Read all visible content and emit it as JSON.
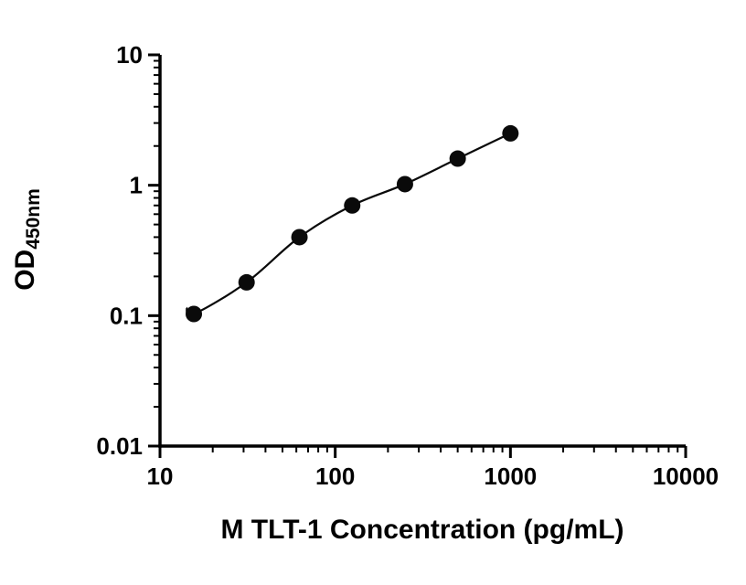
{
  "chart_data": {
    "type": "scatter",
    "x": [
      15.6,
      31.2,
      62.5,
      125,
      250,
      500,
      1000
    ],
    "y": [
      0.103,
      0.18,
      0.4,
      0.7,
      1.02,
      1.6,
      2.5
    ],
    "xlabel": "M TLT-1 Concentration (pg/mL)",
    "ylabel_main": "OD",
    "ylabel_sub": "450nm",
    "x_scale": "log",
    "y_scale": "log",
    "xlim": [
      10,
      10000
    ],
    "ylim": [
      0.01,
      10
    ],
    "x_ticks": [
      10,
      100,
      1000,
      10000
    ],
    "x_tick_labels": [
      "10",
      "100",
      "1000",
      "10000"
    ],
    "y_ticks": [
      0.01,
      0.1,
      1,
      10
    ],
    "y_tick_labels": [
      "0.01",
      "0.1",
      "1",
      "10"
    ],
    "grid": "off",
    "legend": "none",
    "line": "smooth fitted curve through points",
    "marker_color": "#0a0a0a",
    "line_color": "#0a0a0a",
    "axis_color": "#000000"
  }
}
